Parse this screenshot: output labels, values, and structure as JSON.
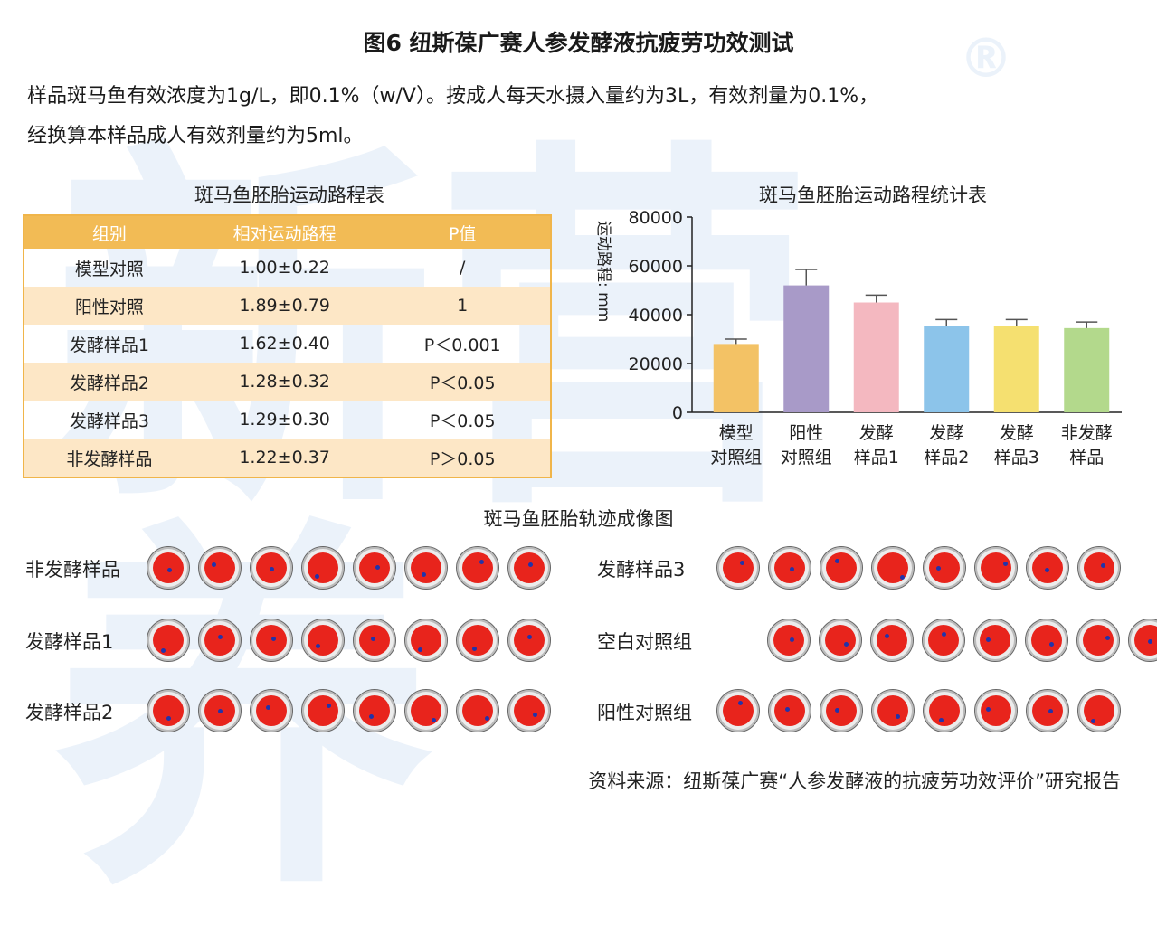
{
  "figure_title": "图6 纽斯葆广赛人参发酵液抗疲劳功效测试",
  "intro_line1": "样品斑马鱼有效浓度为1g/L，即0.1%（w/V）。按成人每天水摄入量约为3L，有效剂量为0.1%，",
  "intro_line2": "经换算本样品成人有效剂量约为5ml。",
  "table": {
    "title": "斑马鱼胚胎运动路程表",
    "headers": [
      "组别",
      "相对运动路程",
      "P值"
    ],
    "rows": [
      [
        "模型对照",
        "1.00±0.22",
        "/"
      ],
      [
        "阳性对照",
        "1.89±0.79",
        "1"
      ],
      [
        "发酵样品1",
        "1.62±0.40",
        "P＜0.001"
      ],
      [
        "发酵样品2",
        "1.28±0.32",
        "P＜0.05"
      ],
      [
        "发酵样品3",
        "1.29±0.30",
        "P＜0.05"
      ],
      [
        "非发酵样品",
        "1.22±0.37",
        "P＞0.05"
      ]
    ],
    "header_color": "#f2bb55",
    "alt_row_color": "#fde7c6"
  },
  "chart_data": {
    "type": "bar",
    "title": "斑马鱼胚胎运动路程统计表",
    "ylabel": "运动路程: mm",
    "xlabel": "",
    "ylim": [
      0,
      80000
    ],
    "yticks": [
      "0",
      "20000",
      "40000",
      "60000",
      "80000"
    ],
    "categories": [
      [
        "模型",
        "对照组"
      ],
      [
        "阳性",
        "对照组"
      ],
      [
        "发酵",
        "样品1"
      ],
      [
        "发酵",
        "样品2"
      ],
      [
        "发酵",
        "样品3"
      ],
      [
        "非发酵",
        "样品"
      ]
    ],
    "values": [
      28000,
      52000,
      45000,
      35500,
      35500,
      34500
    ],
    "errors": [
      2000,
      6500,
      3000,
      2500,
      2500,
      2500
    ],
    "colors": [
      "#f3c265",
      "#a89ac8",
      "#f4b8c0",
      "#8cc4ea",
      "#f5e070",
      "#b3d98c"
    ]
  },
  "gallery": {
    "title": "斑马鱼胚胎轨迹成像图",
    "left_groups": [
      "非发酵样品",
      "发酵样品1",
      "发酵样品2"
    ],
    "right_groups": [
      "发酵样品3",
      "空白对照组",
      "阳性对照组"
    ]
  },
  "source": "资料来源：纽斯葆广赛“人参发酵液的抗疲劳功效评价”研究报告"
}
